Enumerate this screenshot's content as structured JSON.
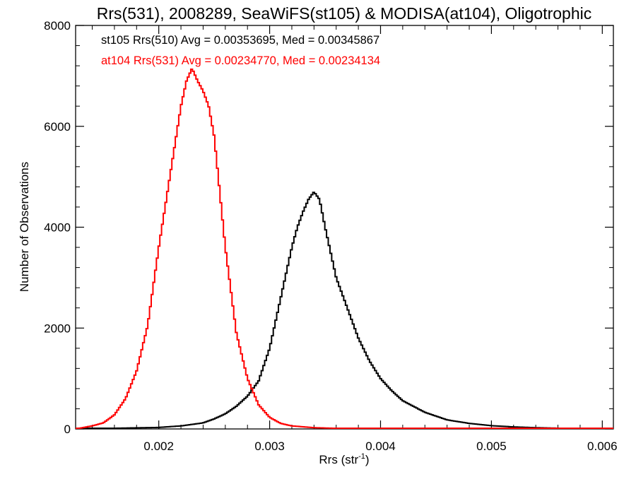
{
  "chart_data": {
    "type": "line",
    "title": "Rrs(531), 2008289, SeaWiFS(st105) & MODISA(at104), Oligotrophic",
    "xlabel": "Rrs (str",
    "xlabel_sup": "-1",
    "xlabel_end": ")",
    "ylabel": "Number of Observations",
    "xlim": [
      0.00125,
      0.0061
    ],
    "ylim": [
      0,
      8000
    ],
    "x_ticks": [
      {
        "value": 0.002,
        "label": "0.002"
      },
      {
        "value": 0.003,
        "label": "0.003"
      },
      {
        "value": 0.004,
        "label": "0.004"
      },
      {
        "value": 0.005,
        "label": "0.005"
      },
      {
        "value": 0.006,
        "label": "0.006"
      }
    ],
    "y_ticks": [
      {
        "value": 0,
        "label": "0"
      },
      {
        "value": 2000,
        "label": "2000"
      },
      {
        "value": 4000,
        "label": "4000"
      },
      {
        "value": 6000,
        "label": "6000"
      },
      {
        "value": 8000,
        "label": "8000"
      }
    ],
    "annotations": [
      "st105 Rrs(510) Avg = 0.00353695, Med = 0.00345867",
      "at104 Rrs(531) Avg = 0.00234770, Med = 0.00234134"
    ],
    "series": [
      {
        "color": "#000000",
        "x": [
          0.00125,
          0.0015,
          0.002,
          0.0022,
          0.0024,
          0.0025,
          0.0026,
          0.0027,
          0.0028,
          0.0029,
          0.003,
          0.0031,
          0.0032,
          0.00325,
          0.0033,
          0.00335,
          0.0034,
          0.00345,
          0.0035,
          0.00355,
          0.0036,
          0.0037,
          0.0038,
          0.0039,
          0.004,
          0.0041,
          0.0042,
          0.0044,
          0.0046,
          0.0048,
          0.005,
          0.0052,
          0.0054,
          0.0056,
          0.0058,
          0.0061
        ],
        "y": [
          0,
          10,
          30,
          60,
          120,
          200,
          300,
          450,
          650,
          950,
          1600,
          2600,
          3600,
          4000,
          4300,
          4550,
          4700,
          4550,
          4000,
          3500,
          3000,
          2400,
          1800,
          1350,
          1000,
          760,
          560,
          330,
          180,
          110,
          65,
          40,
          25,
          15,
          10,
          5
        ]
      },
      {
        "color": "#ff0000",
        "x": [
          0.00125,
          0.0014,
          0.0015,
          0.0016,
          0.0017,
          0.0018,
          0.0019,
          0.002,
          0.0021,
          0.00215,
          0.0022,
          0.00225,
          0.0023,
          0.00235,
          0.0024,
          0.00245,
          0.0025,
          0.0026,
          0.0027,
          0.0028,
          0.0029,
          0.003,
          0.0031,
          0.0032,
          0.0034,
          0.0036,
          0.004,
          0.0061
        ],
        "y": [
          0,
          60,
          120,
          280,
          600,
          1150,
          2050,
          3600,
          5000,
          5700,
          6400,
          6900,
          7150,
          6900,
          6700,
          6400,
          5800,
          3600,
          1900,
          1000,
          480,
          230,
          110,
          60,
          25,
          12,
          5,
          0
        ]
      }
    ]
  }
}
